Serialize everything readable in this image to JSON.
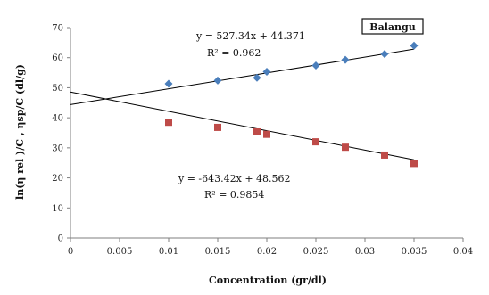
{
  "chart_data": {
    "type": "scatter",
    "xlabel": "Concentration (gr/dl)",
    "ylabel": "ln(η rel )/C , ηsp/C  (dl/g)",
    "xlim": [
      0,
      0.04
    ],
    "ylim": [
      0,
      70
    ],
    "x_ticks": [
      0,
      0.005,
      0.01,
      0.015,
      0.02,
      0.025,
      0.03,
      0.035,
      0.04
    ],
    "y_ticks": [
      0,
      10,
      20,
      30,
      40,
      50,
      60,
      70
    ],
    "x_tick_labels": [
      "0",
      "0.005",
      "0.01",
      "0.015",
      "0.02",
      "0.025",
      "0.03",
      "0.035",
      "0.04"
    ],
    "y_tick_labels": [
      "0",
      "10",
      "20",
      "30",
      "40",
      "50",
      "60",
      "70"
    ],
    "grid": false,
    "legend_box": "Balangu",
    "series": [
      {
        "marker": "diamond",
        "color": "#4a7ebb",
        "x": [
          0.01,
          0.015,
          0.019,
          0.02,
          0.025,
          0.028,
          0.032,
          0.035
        ],
        "y": [
          51.3,
          52.4,
          53.3,
          55.3,
          57.4,
          59.3,
          61.2,
          64.0
        ],
        "trendline": {
          "slope": 527.34,
          "intercept": 44.371,
          "x_range": [
            0,
            0.035
          ],
          "equation": "y = 527.34x + 44.371",
          "r2": "R² = 0.962"
        }
      },
      {
        "marker": "square",
        "color": "#be4b48",
        "x": [
          0.01,
          0.015,
          0.019,
          0.02,
          0.025,
          0.028,
          0.032,
          0.035
        ],
        "y": [
          38.5,
          36.8,
          35.3,
          34.5,
          32.0,
          30.2,
          27.6,
          24.8
        ],
        "trendline": {
          "slope": -643.42,
          "intercept": 48.562,
          "x_range": [
            0,
            0.035
          ],
          "equation": "y = -643.42x + 48.562",
          "r2": "R² = 0.9854"
        }
      }
    ]
  }
}
